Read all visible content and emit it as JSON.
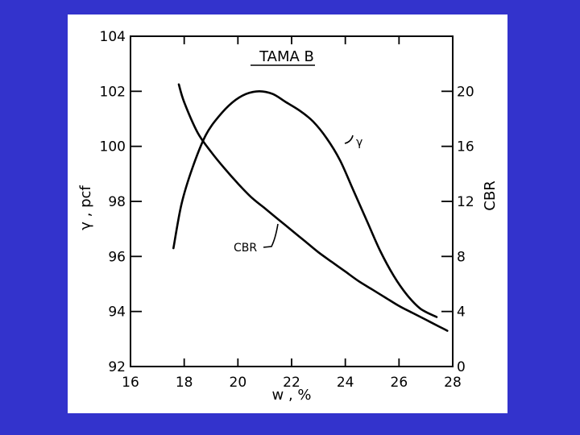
{
  "chart_data": {
    "type": "line",
    "title": "TAMA B",
    "xlabel": "w , %",
    "ylabel": "γ , pcf",
    "y2label": "CBR",
    "xlim": [
      16,
      28
    ],
    "ylim": [
      92,
      104
    ],
    "y2lim": [
      0,
      24
    ],
    "x_ticks": [
      "16",
      "18",
      "20",
      "22",
      "24",
      "26",
      "28"
    ],
    "y_ticks": [
      "92",
      "94",
      "96",
      "98",
      "100",
      "102",
      "104"
    ],
    "y2_ticks": [
      "0",
      "4",
      "8",
      "12",
      "16",
      "20"
    ],
    "grid": false,
    "series": [
      {
        "name": "γ",
        "axis": "left",
        "x": [
          17.6,
          17.9,
          18.3,
          18.8,
          19.3,
          19.8,
          20.3,
          20.8,
          21.3,
          21.8,
          22.3,
          22.8,
          23.3,
          23.8,
          24.3,
          24.8,
          25.3,
          25.8,
          26.3,
          26.8,
          27.4
        ],
        "y": [
          96.3,
          97.9,
          99.2,
          100.4,
          101.1,
          101.6,
          101.9,
          102.0,
          101.9,
          101.6,
          101.3,
          100.9,
          100.3,
          99.5,
          98.4,
          97.3,
          96.2,
          95.3,
          94.6,
          94.1,
          93.8
        ]
      },
      {
        "name": "CBR",
        "axis": "right",
        "x": [
          17.8,
          18.0,
          18.5,
          19.0,
          19.5,
          20.0,
          20.5,
          21.0,
          21.5,
          22.0,
          22.5,
          23.0,
          23.5,
          24.0,
          24.5,
          25.0,
          25.5,
          26.0,
          26.5,
          27.0,
          27.5,
          27.8
        ],
        "y": [
          20.5,
          19.2,
          17.0,
          15.6,
          14.4,
          13.3,
          12.3,
          11.5,
          10.7,
          9.9,
          9.1,
          8.3,
          7.6,
          6.9,
          6.2,
          5.6,
          5.0,
          4.4,
          3.9,
          3.4,
          2.9,
          2.6
        ]
      }
    ],
    "annotations": [
      {
        "text": "γ",
        "series": "γ"
      },
      {
        "text": "CBR",
        "series": "CBR"
      }
    ]
  }
}
